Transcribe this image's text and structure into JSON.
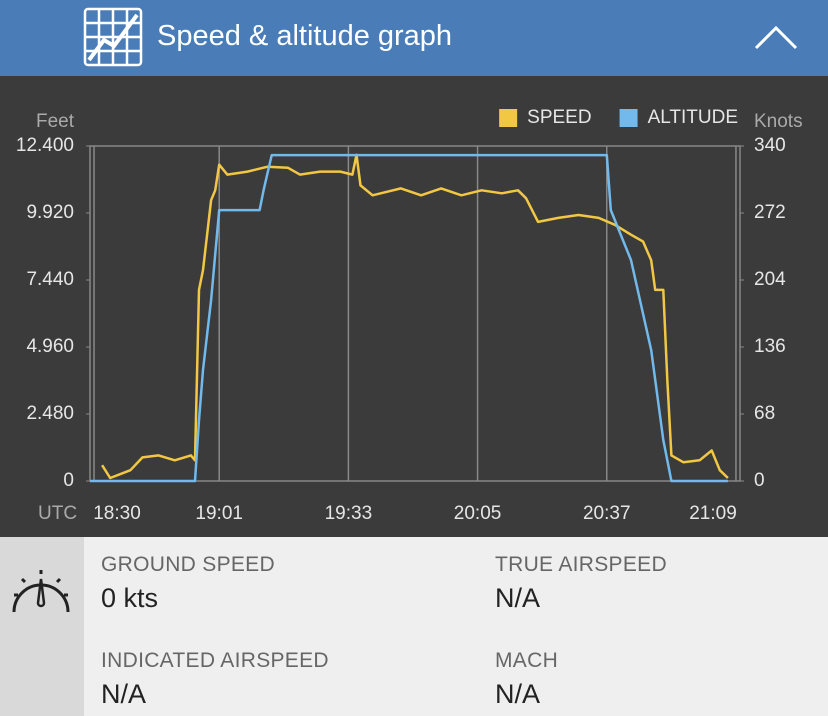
{
  "header": {
    "title": "Speed & altitude graph"
  },
  "chart_data": {
    "type": "line",
    "y_label": "Feet",
    "y2_label": "Knots",
    "x_label": "UTC",
    "xlim": [
      "18:29",
      "21:10"
    ],
    "xticks": [
      "18:30",
      "19:01",
      "19:33",
      "20:05",
      "20:37",
      "21:09"
    ],
    "ylim": [
      0,
      12400
    ],
    "yticks": [
      0,
      {
        "value": 2480,
        "label": "2.480"
      },
      {
        "value": 4960,
        "label": "4.960"
      },
      {
        "value": 7440,
        "label": "7.440"
      },
      {
        "value": 9920,
        "label": "9.920"
      },
      {
        "value": 12400,
        "label": "12.400"
      }
    ],
    "y2lim": [
      0,
      340
    ],
    "y2ticks": [
      0,
      68,
      136,
      204,
      272,
      340
    ],
    "grid": "x",
    "series": [
      {
        "name": "SPEED",
        "color": "#f2c744",
        "axis": "y2",
        "x": [
          "18:32",
          "18:34",
          "18:39",
          "18:42",
          "18:46",
          "18:50",
          "18:54",
          "18:55",
          "18:56",
          "18:57",
          "18:59",
          "19:00",
          "19:01",
          "19:03",
          "19:08",
          "19:13",
          "19:18",
          "19:21",
          "19:26",
          "19:31",
          "19:34",
          "19:35",
          "19:36",
          "19:39",
          "19:46",
          "19:51",
          "19:56",
          "20:01",
          "20:06",
          "20:11",
          "20:15",
          "20:17",
          "20:20",
          "20:25",
          "20:30",
          "20:35",
          "20:39",
          "20:43",
          "20:46",
          "20:48",
          "20:49",
          "20:51",
          "20:52",
          "20:53",
          "20:56",
          "21:00",
          "21:03",
          "21:05",
          "21:07"
        ],
        "values": [
          16,
          3,
          11,
          24,
          26,
          21,
          26,
          21,
          194,
          214,
          285,
          295,
          321,
          311,
          314,
          319,
          318,
          311,
          314,
          314,
          311,
          331,
          300,
          290,
          297,
          290,
          297,
          290,
          295,
          292,
          295,
          287,
          263,
          267,
          270,
          267,
          260,
          250,
          243,
          224,
          194,
          194,
          103,
          26,
          19,
          21,
          31,
          11,
          3
        ]
      },
      {
        "name": "ALTITUDE",
        "color": "#72b9ec",
        "axis": "y",
        "x": [
          "18:29",
          "18:55",
          "18:56",
          "18:57",
          "18:59",
          "19:01",
          "19:11",
          "19:12",
          "19:14",
          "19:21",
          "19:46",
          "20:10",
          "20:37",
          "20:38",
          "20:43",
          "20:48",
          "20:51",
          "20:53",
          "21:07"
        ],
        "values": [
          0,
          0,
          2257,
          4107,
          6697,
          10027,
          10027,
          10767,
          12062,
          12062,
          12062,
          12062,
          12062,
          10027,
          8177,
          4847,
          1517,
          0,
          0
        ]
      }
    ]
  },
  "stats": [
    {
      "label": "GROUND SPEED",
      "value": "0 kts"
    },
    {
      "label": "TRUE AIRSPEED",
      "value": "N/A"
    },
    {
      "label": "INDICATED AIRSPEED",
      "value": "N/A"
    },
    {
      "label": "MACH",
      "value": "N/A"
    }
  ]
}
